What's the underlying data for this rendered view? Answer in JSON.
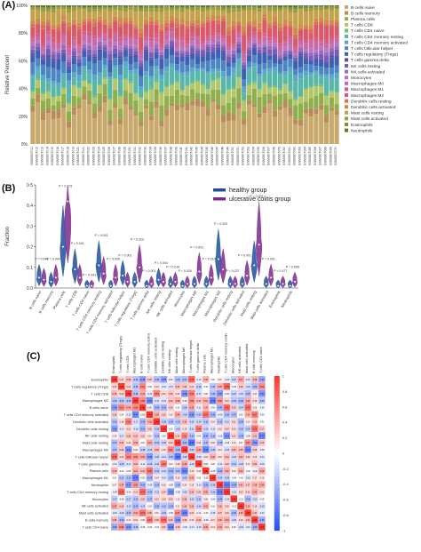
{
  "panels": [
    {
      "label": "(A)",
      "chart_data": {
        "type": "bar",
        "stacked": true,
        "ylabel": "Relative Percent",
        "yticks": [
          "0%",
          "20%",
          "40%",
          "60%",
          "80%",
          "100%"
        ],
        "ylim": [
          0,
          100
        ],
        "legend_position": "right",
        "sample_count": 60,
        "series": [
          {
            "name": "B cells naive",
            "color": "#c9a86b"
          },
          {
            "name": "B cells memory",
            "color": "#b98b5a"
          },
          {
            "name": "Plasma cells",
            "color": "#8fae4c"
          },
          {
            "name": "T cells CD8",
            "color": "#b3c76a"
          },
          {
            "name": "T cells CD4 naive",
            "color": "#6fbf73"
          },
          {
            "name": "T cells CD4 memory resting",
            "color": "#58b7a8"
          },
          {
            "name": "T cells CD4 memory activated",
            "color": "#5aa7c9"
          },
          {
            "name": "T cells follicular helper",
            "color": "#4a86c5"
          },
          {
            "name": "T cells regulatory (Tregs)",
            "color": "#3f5fb0"
          },
          {
            "name": "T cells gamma delta",
            "color": "#5b4aa8"
          },
          {
            "name": "NK cells resting",
            "color": "#7a5cb3"
          },
          {
            "name": "NK cells activated",
            "color": "#9a6bbd"
          },
          {
            "name": "Monocytes",
            "color": "#b877c0"
          },
          {
            "name": "Macrophages M0",
            "color": "#c86aa8"
          },
          {
            "name": "Macrophages M1",
            "color": "#d45c86"
          },
          {
            "name": "Macrophages M2",
            "color": "#d85a6a"
          },
          {
            "name": "Dendritic cells resting",
            "color": "#d9714f"
          },
          {
            "name": "Dendritic cells activated",
            "color": "#cf8a4c"
          },
          {
            "name": "Mast cells resting",
            "color": "#c2a24a"
          },
          {
            "name": "Mast cells activated",
            "color": "#9e9a3e"
          },
          {
            "name": "Eosinophils",
            "color": "#7b8f3a"
          },
          {
            "name": "Neutrophils",
            "color": "#5c7a30"
          }
        ],
        "sample_labels": [
          "GSM3907011",
          "GSM3907012",
          "GSM3907013",
          "GSM3907014",
          "GSM3907015",
          "GSM3907016",
          "GSM3907017",
          "GSM3907018",
          "GSM3907019",
          "GSM3907020",
          "GSM3907021",
          "GSM3907022",
          "GSM3907023",
          "GSM3907024",
          "GSM3907025",
          "GSM3907026",
          "GSM3907027",
          "GSM3907028",
          "GSM3907029",
          "GSM3907030",
          "GSM3907031",
          "GSM3907032",
          "GSM3907033",
          "GSM3907034",
          "GSM3907035",
          "GSM3907036",
          "GSM3907037",
          "GSM3907038",
          "GSM3907039",
          "GSM3907040",
          "GSM3907041",
          "GSM3907042",
          "GSM3907043",
          "GSM3907044",
          "GSM3907045",
          "GSM3907046",
          "GSM3907047",
          "GSM3907048",
          "GSM3907049",
          "GSM3907050",
          "GSM3907051",
          "GSM3907052",
          "GSM3907053",
          "GSM3907054",
          "GSM3907055",
          "GSM3907056",
          "GSM3907057",
          "GSM3907058",
          "GSM3907059",
          "GSM3907060",
          "GSM3907061",
          "GSM3907062",
          "GSM3907063",
          "GSM3907064",
          "GSM3907065",
          "GSM3907066",
          "GSM3907067",
          "GSM3907068",
          "GSM3907069",
          "GSM3907070"
        ]
      }
    },
    {
      "label": "(B)",
      "chart_data": {
        "type": "violin",
        "ylabel": "Fraction",
        "ylim": [
          0,
          0.5
        ],
        "yticks": [
          0.0,
          0.1,
          0.2,
          0.3,
          0.4,
          0.5
        ],
        "legend": [
          {
            "name": "healthy group",
            "color": "#1f4e9c"
          },
          {
            "name": "ulcerative colitis group",
            "color": "#7b2a8c"
          }
        ],
        "categories": [
          "B cells naive",
          "B cells memory",
          "Plasma cells",
          "T cells CD8",
          "T cells CD4 naive",
          "T cells CD4 memory resting",
          "T cells CD4 memory activated",
          "T cells follicular helper",
          "T cells regulatory (Tregs)",
          "T cells gamma delta",
          "NK cells resting",
          "NK cells activated",
          "Monocytes",
          "Macrophages M0",
          "Macrophages M1",
          "Macrophages M2",
          "Dendritic cells resting",
          "Dendritic cells activated",
          "Mast cells resting",
          "Mast cells activated",
          "Eosinophils",
          "Neutrophils"
        ],
        "pvalues": [
          "P = 0.048",
          "P = 0.004",
          "P = 0.173",
          "P = 0.001",
          "P = 0.003",
          "P = 0.001",
          "P = 0.005",
          "P = 0.001",
          "P = 0.323",
          "P = 0.001",
          "P = 0.004",
          "P = 0.016",
          "P = 0.026",
          "P = 0.001",
          "P = 0.010",
          "P = 0.000",
          "P = 0.227",
          "P = 0.001",
          "P = 0.001",
          "P = 0.001",
          "P = 0.177",
          "P = 0.096"
        ],
        "healthy_medians": [
          0.05,
          0.03,
          0.2,
          0.09,
          0.01,
          0.11,
          0.01,
          0.06,
          0.03,
          0.01,
          0.04,
          0.02,
          0.01,
          0.02,
          0.02,
          0.14,
          0.02,
          0.02,
          0.11,
          0.02,
          0.01,
          0.01
        ],
        "uc_medians": [
          0.04,
          0.05,
          0.42,
          0.05,
          0.01,
          0.07,
          0.05,
          0.03,
          0.1,
          0.02,
          0.03,
          0.03,
          0.02,
          0.08,
          0.05,
          0.09,
          0.02,
          0.06,
          0.21,
          0.05,
          0.02,
          0.03
        ]
      }
    },
    {
      "label": "(C)",
      "chart_data": {
        "type": "heatmap",
        "colorbar_ticks": [
          "1",
          "0.8",
          "0.6",
          "0.4",
          "0.2",
          "0",
          "-0.2",
          "-0.4",
          "-0.6",
          "-0.8",
          "-1"
        ],
        "labels": [
          "Eosinophils",
          "T cells regulatory (Tregs)",
          "T cells CD8",
          "Macrophages M2",
          "B cells naive",
          "T cells CD4 memory activated",
          "Dendritic cells activated",
          "Dendritic cells resting",
          "NK cells resting",
          "Mast cells resting",
          "Macrophages M0",
          "T cells follicular helper",
          "T cells gamma delta",
          "Plasma cells",
          "Macrophages M1",
          "Neutrophils",
          "T cells CD4 memory resting",
          "Monocytes",
          "NK cells activated",
          "Mast cells activated",
          "B cells memory",
          "T cells CD4 naive"
        ]
      }
    }
  ]
}
